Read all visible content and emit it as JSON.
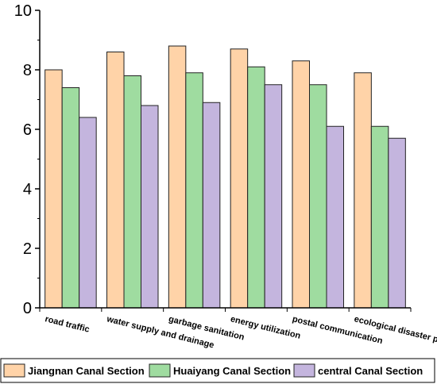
{
  "chart_data": {
    "type": "bar",
    "title": "",
    "xlabel": "",
    "ylabel": "",
    "ylim": [
      0,
      10
    ],
    "yticks": [
      0,
      2,
      4,
      6,
      8,
      10
    ],
    "grid": false,
    "legend_position": "bottom",
    "categories": [
      "road traffic",
      "water supply and drainage",
      "garbage sanitation",
      "energy utilization",
      "postal communication",
      "ecological disaster prevention"
    ],
    "series": [
      {
        "name": "Jiangnan Canal Section",
        "color": "#FFD3A8",
        "values": [
          8.0,
          8.6,
          8.8,
          8.7,
          8.3,
          7.9
        ]
      },
      {
        "name": "Huaiyang Canal Section",
        "color": "#9FDCA0",
        "values": [
          7.4,
          7.8,
          7.9,
          8.1,
          7.5,
          6.1
        ]
      },
      {
        "name": "central Canal Section",
        "color": "#C4B5DE",
        "values": [
          6.4,
          6.8,
          6.9,
          7.5,
          6.1,
          5.7
        ]
      }
    ]
  }
}
